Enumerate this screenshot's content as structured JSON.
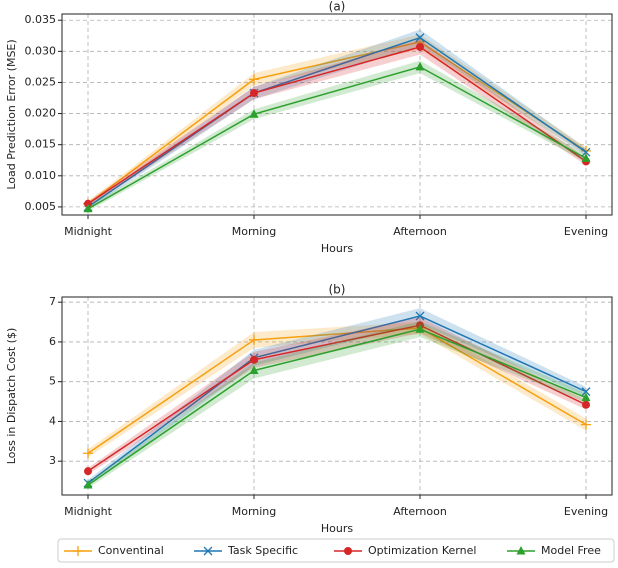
{
  "chart_data": [
    {
      "type": "line",
      "title": "(a)",
      "x_label": "Hours",
      "y_label": "Load Prediction Error (MSE)",
      "categories": [
        "Midnight",
        "Morning",
        "Afternoon",
        "Evening"
      ],
      "ylim": [
        0.0037,
        0.036
      ],
      "yticks": [
        0.005,
        {
          "value": 0.01,
          "label": "0.010"
        },
        0.015,
        {
          "value": 0.02,
          "label": "0.020"
        },
        0.025,
        {
          "value": 0.03,
          "label": "0.030"
        },
        0.035
      ],
      "grid": true,
      "series": [
        {
          "name": "Conventinal",
          "color": "#f5a00f",
          "marker": "plus",
          "values": [
            0.0055,
            0.0255,
            0.0315,
            0.014
          ],
          "errors": [
            0.0004,
            0.001,
            0.0012,
            0.0006
          ]
        },
        {
          "name": "Task Specific",
          "color": "#1f77b4",
          "marker": "x",
          "values": [
            0.005,
            0.0233,
            0.0322,
            0.0138
          ],
          "errors": [
            0.0004,
            0.001,
            0.0013,
            0.0006
          ]
        },
        {
          "name": "Optimization Kernel",
          "color": "#d62728",
          "marker": "circle",
          "values": [
            0.0055,
            0.0233,
            0.0307,
            0.0123
          ],
          "errors": [
            0.0004,
            0.001,
            0.0012,
            0.0006
          ]
        },
        {
          "name": "Model Free",
          "color": "#2ca02c",
          "marker": "triangle",
          "values": [
            0.0047,
            0.0199,
            0.0275,
            0.0128
          ],
          "errors": [
            0.0004,
            0.0008,
            0.001,
            0.0006
          ]
        }
      ]
    },
    {
      "type": "line",
      "title": "(b)",
      "x_label": "Hours",
      "y_label": "Loss in Dispatch Cost ($)",
      "categories": [
        "Midnight",
        "Morning",
        "Afternoon",
        "Evening"
      ],
      "ylim": [
        2.15,
        7.13
      ],
      "yticks": [
        3,
        4,
        5,
        6,
        7
      ],
      "grid": true,
      "series": [
        {
          "values": [
            3.2,
            6.05,
            6.35,
            3.92
          ],
          "errors": [
            0.1,
            0.2,
            0.15,
            0.15
          ]
        },
        {
          "values": [
            2.45,
            5.6,
            6.65,
            4.75
          ],
          "errors": [
            0.08,
            0.2,
            0.2,
            0.12
          ]
        },
        {
          "values": [
            2.75,
            5.55,
            6.42,
            4.42
          ],
          "errors": [
            0.08,
            0.2,
            0.2,
            0.12
          ]
        },
        {
          "values": [
            2.4,
            5.28,
            6.32,
            4.6
          ],
          "errors": [
            0.08,
            0.2,
            0.2,
            0.12
          ]
        }
      ]
    }
  ]
}
